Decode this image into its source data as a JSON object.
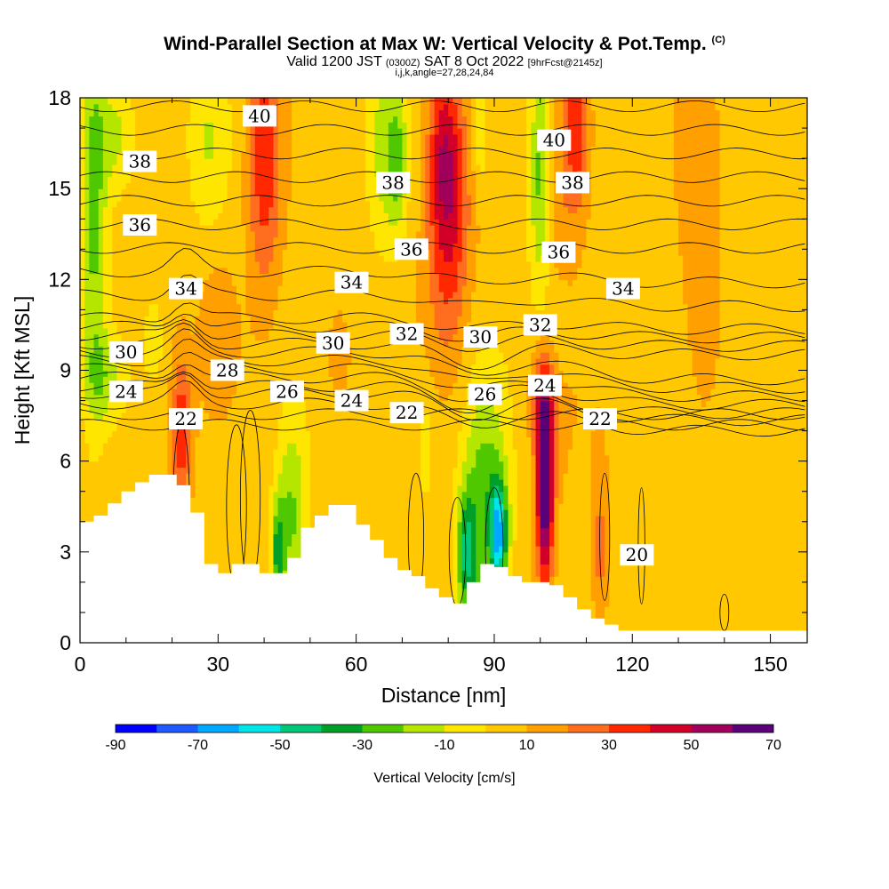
{
  "title": {
    "main": "Wind-Parallel Section at Max W: Vertical Velocity & Pot.Temp.",
    "mark": "(C)",
    "valid_a": "Valid 1200 JST",
    "valid_utc": "(0300Z)",
    "valid_b": "SAT 8 Oct 2022",
    "forecast": "[9hrFcst@2145z]",
    "indices": "i,j,k,angle=27,28,24,84"
  },
  "chart_data": {
    "type": "heatmap",
    "xlabel": "Distance [nm]",
    "ylabel": "Height [Kft MSL]",
    "xlim": [
      0,
      158
    ],
    "ylim": [
      0,
      18
    ],
    "x_ticks": [
      0,
      30,
      60,
      90,
      120,
      150
    ],
    "y_ticks": [
      0,
      3,
      6,
      9,
      12,
      15,
      18
    ],
    "grid": false,
    "colorbar": {
      "label": "Vertical Velocity [cm/s]",
      "ticks": [
        -90,
        -70,
        -50,
        -30,
        -10,
        10,
        30,
        50,
        70
      ],
      "bins": [
        -90,
        -80,
        -70,
        -60,
        -50,
        -40,
        -30,
        -20,
        -10,
        0,
        10,
        20,
        30,
        40,
        50,
        60,
        70
      ],
      "colors": [
        "#0000ff",
        "#1e5aff",
        "#00a8ff",
        "#00e6e6",
        "#00c878",
        "#00a028",
        "#50c800",
        "#b4e600",
        "#ffe600",
        "#ffc800",
        "#ffa000",
        "#ff6e1e",
        "#ff2800",
        "#d20028",
        "#a0005a",
        "#5a0078"
      ]
    },
    "terrain_kft": [
      [
        0,
        4.0
      ],
      [
        3,
        4.2
      ],
      [
        6,
        4.6
      ],
      [
        9,
        5.0
      ],
      [
        12,
        5.3
      ],
      [
        15,
        5.55
      ],
      [
        18,
        5.55
      ],
      [
        21,
        5.2
      ],
      [
        24,
        4.3
      ],
      [
        27,
        2.6
      ],
      [
        30,
        2.3
      ],
      [
        33,
        2.6
      ],
      [
        36,
        2.6
      ],
      [
        39,
        2.3
      ],
      [
        42,
        2.3
      ],
      [
        45,
        2.8
      ],
      [
        48,
        3.8
      ],
      [
        51,
        4.2
      ],
      [
        54,
        4.55
      ],
      [
        57,
        4.55
      ],
      [
        60,
        3.9
      ],
      [
        63,
        3.4
      ],
      [
        66,
        2.8
      ],
      [
        69,
        2.4
      ],
      [
        72,
        2.2
      ],
      [
        75,
        1.8
      ],
      [
        78,
        1.5
      ],
      [
        81,
        1.3
      ],
      [
        84,
        2.0
      ],
      [
        87,
        2.6
      ],
      [
        90,
        2.5
      ],
      [
        93,
        2.2
      ],
      [
        96,
        2.0
      ],
      [
        99,
        2.0
      ],
      [
        102,
        1.9
      ],
      [
        105,
        1.5
      ],
      [
        108,
        1.1
      ],
      [
        111,
        0.8
      ],
      [
        114,
        0.6
      ],
      [
        117,
        0.4
      ],
      [
        120,
        0.4
      ],
      [
        126,
        0.4
      ],
      [
        158,
        0.4
      ]
    ],
    "theta_labels": [
      {
        "value": "40",
        "x": 39,
        "y": 17.4
      },
      {
        "value": "38",
        "x": 13,
        "y": 15.9
      },
      {
        "value": "38",
        "x": 68,
        "y": 15.2
      },
      {
        "value": "40",
        "x": 103,
        "y": 16.6
      },
      {
        "value": "38",
        "x": 107,
        "y": 15.2
      },
      {
        "value": "36",
        "x": 13,
        "y": 13.8
      },
      {
        "value": "36",
        "x": 72,
        "y": 13.0
      },
      {
        "value": "36",
        "x": 104,
        "y": 12.9
      },
      {
        "value": "34",
        "x": 23,
        "y": 11.7
      },
      {
        "value": "34",
        "x": 59,
        "y": 11.9
      },
      {
        "value": "34",
        "x": 118,
        "y": 11.7
      },
      {
        "value": "32",
        "x": 71,
        "y": 10.2
      },
      {
        "value": "32",
        "x": 100,
        "y": 10.5
      },
      {
        "value": "30",
        "x": 10,
        "y": 9.6
      },
      {
        "value": "30",
        "x": 55,
        "y": 9.9
      },
      {
        "value": "30",
        "x": 87,
        "y": 10.1
      },
      {
        "value": "28",
        "x": 32,
        "y": 9.0
      },
      {
        "value": "26",
        "x": 45,
        "y": 8.3
      },
      {
        "value": "26",
        "x": 88,
        "y": 8.2
      },
      {
        "value": "24",
        "x": 10,
        "y": 8.3
      },
      {
        "value": "24",
        "x": 59,
        "y": 8.0
      },
      {
        "value": "24",
        "x": 101,
        "y": 8.5
      },
      {
        "value": "22",
        "x": 23,
        "y": 7.4
      },
      {
        "value": "22",
        "x": 71,
        "y": 7.6
      },
      {
        "value": "22",
        "x": 113,
        "y": 7.4
      },
      {
        "value": "20",
        "x": 121,
        "y": 2.9
      }
    ]
  }
}
